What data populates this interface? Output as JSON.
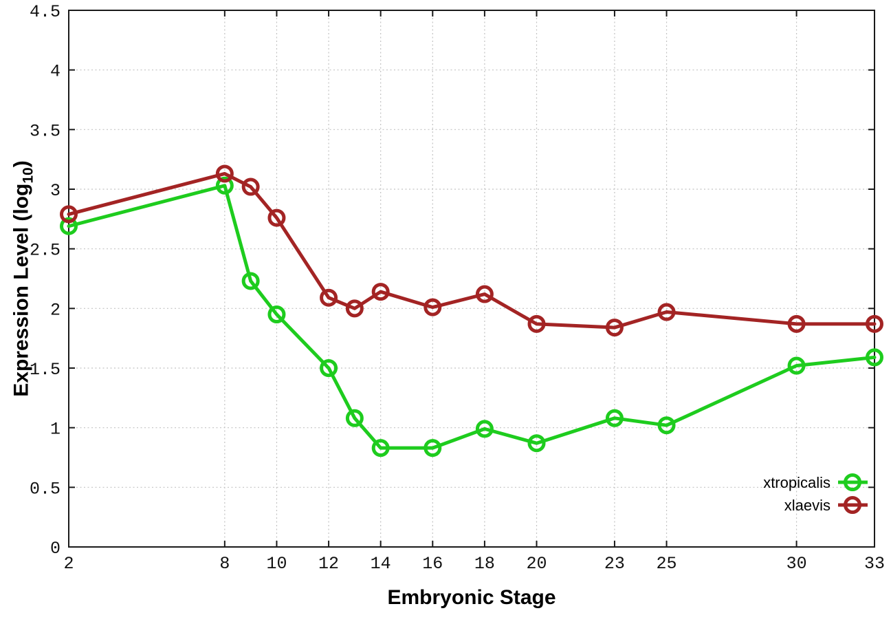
{
  "chart_data": {
    "type": "line",
    "title": "",
    "xlabel": "Embryonic Stage",
    "ylabel": {
      "text": "Expression Level (log",
      "sub": "10",
      "suffix": ")"
    },
    "xlim": [
      2,
      33
    ],
    "ylim": [
      0,
      4.5
    ],
    "x_ticks": [
      2,
      8,
      10,
      12,
      14,
      16,
      18,
      20,
      23,
      25,
      30,
      33
    ],
    "x_tick_labels": [
      "2",
      "8",
      "10",
      "12",
      "14",
      "16",
      "18",
      "20",
      "23",
      "25",
      "30",
      "33"
    ],
    "y_ticks": [
      0,
      0.5,
      1,
      1.5,
      2,
      2.5,
      3,
      3.5,
      4,
      4.5
    ],
    "y_tick_labels": [
      "0",
      "0.5",
      "1",
      "1.5",
      "2",
      "2.5",
      "3",
      "3.5",
      "4",
      "4.5"
    ],
    "grid": true,
    "legend_position": "inside-bottom-right",
    "marker": "open-circle",
    "series": [
      {
        "name": "xtropicalis",
        "color": "#1ecc1e",
        "x": [
          2,
          8,
          9,
          10,
          12,
          13,
          14,
          16,
          18,
          20,
          23,
          25,
          30,
          33
        ],
        "values": [
          2.69,
          3.03,
          2.23,
          1.95,
          1.5,
          1.08,
          0.83,
          0.83,
          0.99,
          0.87,
          1.08,
          1.02,
          1.52,
          1.59
        ]
      },
      {
        "name": "xlaevis",
        "color": "#a32424",
        "x": [
          2,
          8,
          9,
          10,
          12,
          13,
          14,
          16,
          18,
          20,
          23,
          25,
          30,
          33
        ],
        "values": [
          2.79,
          3.13,
          3.02,
          2.76,
          2.09,
          2.0,
          2.14,
          2.01,
          2.12,
          1.87,
          1.84,
          1.97,
          1.87,
          1.87
        ]
      }
    ]
  },
  "colors": {
    "background": "#ffffff",
    "grid": "#c2c2c2",
    "axis": "#1a1a1a",
    "tick_text": "#111111"
  }
}
